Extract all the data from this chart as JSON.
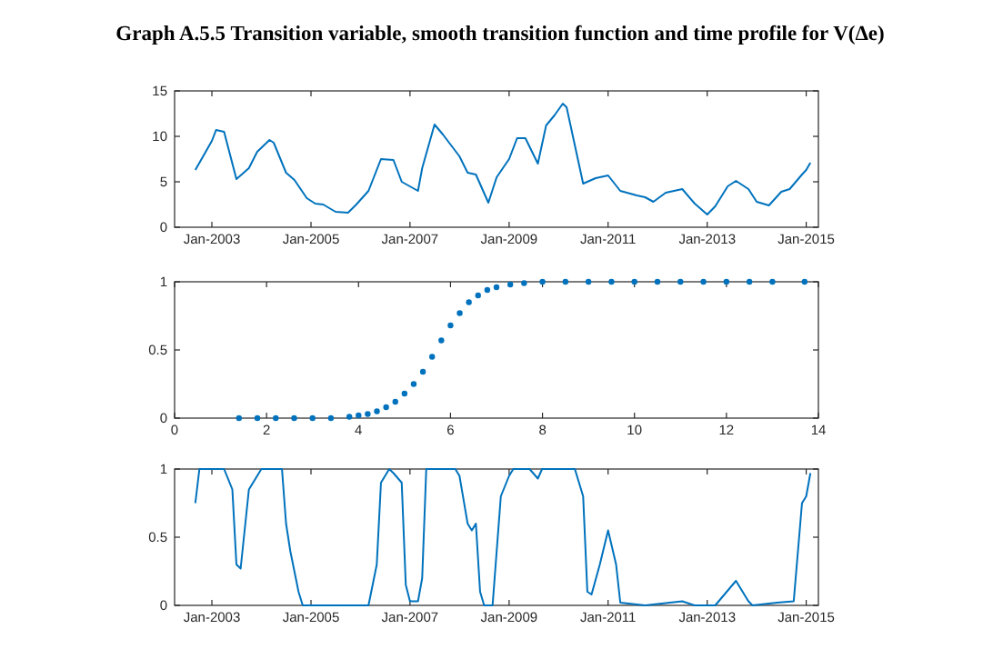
{
  "chart_data": [
    {
      "type": "line",
      "title": "Graph A.5.5 Transition variable, smooth transition function and time profile for V(Δe)",
      "x": [
        "2002-09",
        "2003-01",
        "2003-02",
        "2003-04",
        "2003-07",
        "2003-10",
        "2003-12",
        "2004-03",
        "2004-04",
        "2004-07",
        "2004-09",
        "2004-12",
        "2005-02",
        "2005-04",
        "2005-07",
        "2005-10",
        "2005-12",
        "2006-03",
        "2006-06",
        "2006-09",
        "2006-11",
        "2007-03",
        "2007-04",
        "2007-07",
        "2007-09",
        "2008-01",
        "2008-03",
        "2008-05",
        "2008-08",
        "2008-10",
        "2009-01",
        "2009-03",
        "2009-05",
        "2009-08",
        "2009-10",
        "2009-12",
        "2010-02",
        "2010-03",
        "2010-07",
        "2010-10",
        "2011-01",
        "2011-04",
        "2011-08",
        "2011-10",
        "2011-12",
        "2012-03",
        "2012-07",
        "2012-10",
        "2013-01",
        "2013-03",
        "2013-06",
        "2013-08",
        "2013-11",
        "2014-01",
        "2014-04",
        "2014-07",
        "2014-09",
        "2014-12",
        "2015-01",
        "2015-02"
      ],
      "series": [
        {
          "color": "#0072bd",
          "values": [
            6.3,
            9.5,
            10.7,
            10.5,
            5.3,
            6.5,
            8.3,
            9.6,
            9.3,
            6,
            5.2,
            3.2,
            2.6,
            2.5,
            1.7,
            1.6,
            2.5,
            4,
            7.5,
            7.4,
            5,
            4,
            6.5,
            11.3,
            10.2,
            7.8,
            6,
            5.8,
            2.7,
            5.5,
            7.5,
            9.8,
            9.8,
            7,
            11.2,
            12.3,
            13.6,
            13.2,
            4.8,
            5.4,
            5.7,
            4,
            3.5,
            3.3,
            2.8,
            3.8,
            4.2,
            2.6,
            1.4,
            2.3,
            4.5,
            5.1,
            4.2,
            2.8,
            2.4,
            3.9,
            4.2,
            5.8,
            6.3,
            7.1
          ]
        }
      ],
      "xlim": [
        "2002-04",
        "2015-04"
      ],
      "xticks": [
        {
          "value": "2003-01",
          "label": "Jan-2003"
        },
        {
          "value": "2005-01",
          "label": "Jan-2005"
        },
        {
          "value": "2007-01",
          "label": "Jan-2007"
        },
        {
          "value": "2009-01",
          "label": "Jan-2009"
        },
        {
          "value": "2011-01",
          "label": "Jan-2011"
        },
        {
          "value": "2013-01",
          "label": "Jan-2013"
        },
        {
          "value": "2015-01",
          "label": "Jan-2015"
        }
      ],
      "ylim": [
        0,
        15
      ],
      "yticks": [
        0,
        5,
        10,
        15
      ]
    },
    {
      "type": "scatter",
      "marker": "circle",
      "x": [
        1.4,
        1.8,
        2.2,
        2.6,
        3.0,
        3.4,
        3.8,
        4.0,
        4.2,
        4.4,
        4.6,
        4.8,
        5.0,
        5.2,
        5.4,
        5.6,
        5.8,
        6.0,
        6.2,
        6.4,
        6.6,
        6.8,
        7.0,
        7.3,
        7.6,
        8.0,
        8.5,
        9,
        9.5,
        10,
        10.5,
        11,
        11.5,
        12,
        12.5,
        13,
        13.7
      ],
      "series": [
        {
          "color": "#0072bd",
          "values": [
            0,
            0,
            0,
            0,
            0,
            0,
            0.01,
            0.02,
            0.03,
            0.05,
            0.08,
            0.12,
            0.18,
            0.25,
            0.34,
            0.45,
            0.57,
            0.68,
            0.77,
            0.85,
            0.9,
            0.94,
            0.96,
            0.98,
            0.99,
            1,
            1,
            1,
            1,
            1,
            1,
            1,
            1,
            1,
            1,
            1,
            1
          ]
        }
      ],
      "xlim": [
        0,
        14
      ],
      "xticks": [
        0,
        2,
        4,
        6,
        8,
        10,
        12,
        14
      ],
      "ylim": [
        0,
        1
      ],
      "yticks": [
        0,
        0.5,
        1
      ]
    },
    {
      "type": "line",
      "x": [
        "2002-09",
        "2002-10",
        "2002-12",
        "2003-04",
        "2003-06",
        "2003-07",
        "2003-08",
        "2003-10",
        "2004-01",
        "2004-06",
        "2004-07",
        "2004-08",
        "2004-10",
        "2004-11",
        "2006-03",
        "2006-05",
        "2006-06",
        "2006-08",
        "2006-09",
        "2006-11",
        "2006-12",
        "2007-01",
        "2007-03",
        "2007-04",
        "2007-05",
        "2007-12",
        "2008-01",
        "2008-03",
        "2008-04",
        "2008-05",
        "2008-06",
        "2008-07",
        "2008-09",
        "2008-11",
        "2009-01",
        "2009-02",
        "2009-06",
        "2009-08",
        "2009-09",
        "2010-05",
        "2010-07",
        "2010-08",
        "2010-09",
        "2010-11",
        "2011-01",
        "2011-03",
        "2011-04",
        "2011-10",
        "2012-07",
        "2012-10",
        "2013-03",
        "2013-08",
        "2013-11",
        "2013-12",
        "2014-06",
        "2014-10",
        "2014-12",
        "2015-01",
        "2015-02"
      ],
      "series": [
        {
          "color": "#0072bd",
          "values": [
            0.75,
            1,
            1,
            1,
            0.85,
            0.3,
            0.27,
            0.85,
            1,
            1,
            0.6,
            0.4,
            0.1,
            0,
            0,
            0.3,
            0.9,
            1,
            0.97,
            0.9,
            0.15,
            0.03,
            0.03,
            0.2,
            1,
            1,
            0.95,
            0.6,
            0.55,
            0.6,
            0.1,
            0,
            0,
            0.8,
            0.95,
            1,
            1,
            0.93,
            1,
            1,
            0.8,
            0.1,
            0.08,
            0.3,
            0.55,
            0.3,
            0.02,
            0,
            0.03,
            0,
            0,
            0.18,
            0.03,
            0,
            0.02,
            0.03,
            0.75,
            0.8,
            0.97
          ]
        }
      ],
      "xlim": [
        "2002-04",
        "2015-04"
      ],
      "xticks": [
        {
          "value": "2003-01",
          "label": "Jan-2003"
        },
        {
          "value": "2005-01",
          "label": "Jan-2005"
        },
        {
          "value": "2007-01",
          "label": "Jan-2007"
        },
        {
          "value": "2009-01",
          "label": "Jan-2009"
        },
        {
          "value": "2011-01",
          "label": "Jan-2011"
        },
        {
          "value": "2013-01",
          "label": "Jan-2013"
        },
        {
          "value": "2015-01",
          "label": "Jan-2015"
        }
      ],
      "ylim": [
        0,
        1
      ],
      "yticks": [
        0,
        0.5,
        1
      ]
    }
  ]
}
